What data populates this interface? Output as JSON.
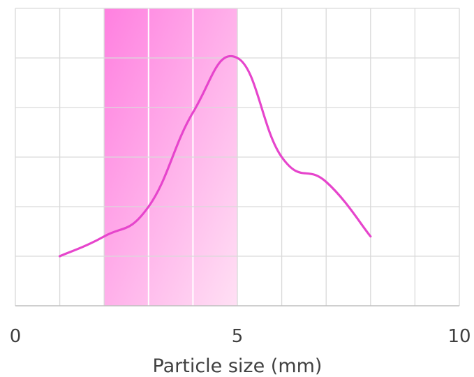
{
  "chart_data": {
    "type": "line",
    "title": "",
    "xlabel": "Particle size (mm)",
    "ylabel": "",
    "xlim": [
      0,
      10
    ],
    "ylim": [
      0,
      6
    ],
    "x_ticks": [
      0,
      5,
      10
    ],
    "y_ticks": [],
    "grid": {
      "vertical_every": 1,
      "horizontal_every": 1
    },
    "shaded_region": {
      "x_start": 2,
      "x_end": 5,
      "color_start": "#ff80e0",
      "color_end": "#ffe0f4"
    },
    "series": [
      {
        "color": "#e645cc",
        "smooth": true,
        "x": [
          1,
          2,
          3,
          4,
          5,
          6,
          7,
          8
        ],
        "y": [
          1.0,
          1.4,
          2.0,
          3.9,
          5.0,
          3.0,
          2.5,
          1.4
        ]
      }
    ],
    "legend": "none",
    "colors": {
      "grid": "#d9d9d9",
      "axis": "#bfbfbf",
      "text": "#404040"
    }
  }
}
